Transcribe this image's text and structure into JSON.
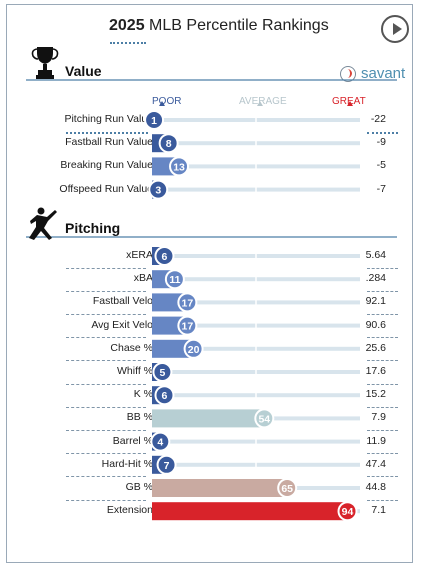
{
  "header": {
    "title_year": "2025",
    "title_rest": "MLB Percentile Rankings"
  },
  "icons": {
    "play": "play-icon",
    "value": "trophy-icon",
    "pitching": "pitcher-icon",
    "logo": "savant-baseball-icon"
  },
  "brand": {
    "savant": "savant"
  },
  "scale": {
    "poor": "POOR",
    "average": "AVERAGE",
    "great": "GREAT"
  },
  "colors": {
    "poor_blue": "#3a5a9c",
    "mid_blue": "#6686c4",
    "grey_teal": "#b7cfd3",
    "tan": "#c9aaa1",
    "red": "#d8232a",
    "track": "#d8e4ec"
  },
  "chart_data": {
    "type": "bar",
    "x_range": [
      0,
      100
    ],
    "sections": [
      {
        "title": "Value",
        "rows": [
          {
            "label": "Pitching Run Value",
            "percentile": 1,
            "value": "-22"
          },
          {
            "label": "Fastball Run Value",
            "percentile": 8,
            "value": "-9"
          },
          {
            "label": "Breaking Run Value",
            "percentile": 13,
            "value": "-5"
          },
          {
            "label": "Offspeed Run Value",
            "percentile": 3,
            "value": "-7"
          }
        ]
      },
      {
        "title": "Pitching",
        "rows": [
          {
            "label": "xERA",
            "percentile": 6,
            "value": "5.64"
          },
          {
            "label": "xBA",
            "percentile": 11,
            "value": ".284"
          },
          {
            "label": "Fastball Velo",
            "percentile": 17,
            "value": "92.1"
          },
          {
            "label": "Avg Exit Velo",
            "percentile": 17,
            "value": "90.6"
          },
          {
            "label": "Chase %",
            "percentile": 20,
            "value": "25.6"
          },
          {
            "label": "Whiff %",
            "percentile": 5,
            "value": "17.6"
          },
          {
            "label": "K %",
            "percentile": 6,
            "value": "15.2"
          },
          {
            "label": "BB %",
            "percentile": 54,
            "value": "7.9"
          },
          {
            "label": "Barrel %",
            "percentile": 4,
            "value": "11.9"
          },
          {
            "label": "Hard-Hit %",
            "percentile": 7,
            "value": "47.4"
          },
          {
            "label": "GB %",
            "percentile": 65,
            "value": "44.8"
          },
          {
            "label": "Extension",
            "percentile": 94,
            "value": "7.1"
          }
        ]
      }
    ]
  }
}
